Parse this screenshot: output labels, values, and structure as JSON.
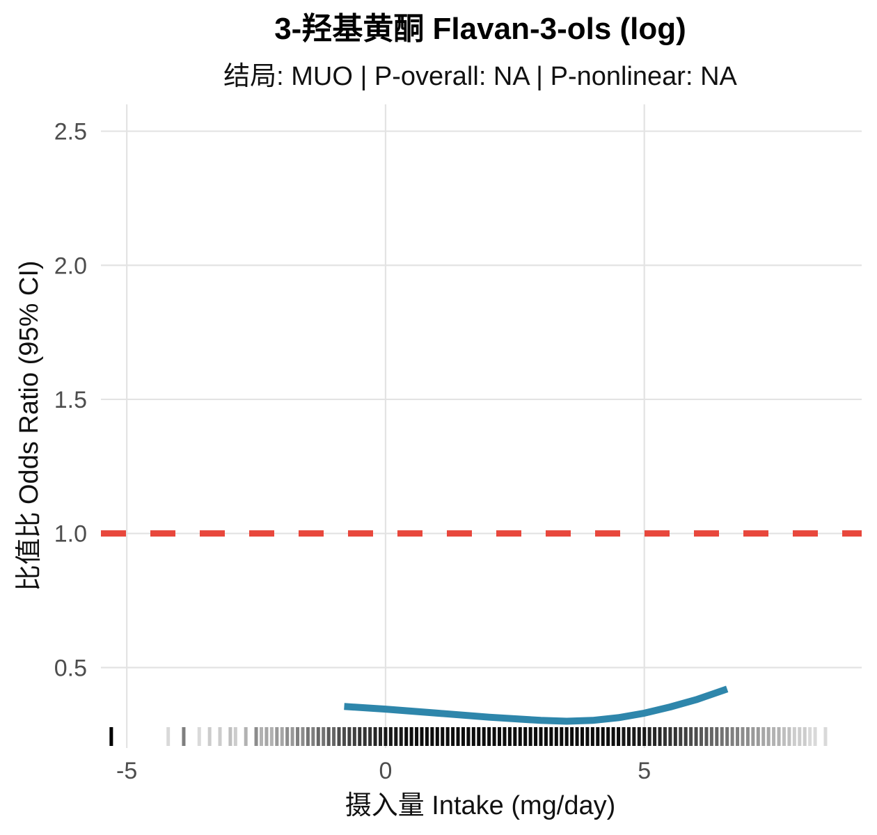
{
  "chart_data": {
    "type": "line",
    "title": "3-羟基黄酮 Flavan-3-ols (log)",
    "subtitle": "结局: MUO | P-overall: NA | P-nonlinear: NA",
    "xlabel": "摄入量 Intake (mg/day)",
    "ylabel": "比值比 Odds Ratio (95% CI)",
    "xlim": [
      -5.5,
      9.2
    ],
    "ylim": [
      0.2,
      2.6
    ],
    "xticks": [
      -5,
      0,
      5
    ],
    "xtick_labels": [
      "-5",
      "0",
      "5"
    ],
    "yticks": [
      0.5,
      1.0,
      1.5,
      2.0,
      2.5
    ],
    "ytick_labels": [
      "0.5",
      "1.0",
      "1.5",
      "2.0",
      "2.5"
    ],
    "reference_line": {
      "y": 1.0,
      "style": "dashed",
      "color": "#e8473c"
    },
    "series": [
      {
        "color": "#2e86ab",
        "x": [
          -0.8,
          0,
          1,
          2,
          3,
          3.5,
          4,
          4.5,
          5,
          5.5,
          6,
          6.6
        ],
        "y": [
          0.355,
          0.345,
          0.33,
          0.315,
          0.303,
          0.3,
          0.303,
          0.313,
          0.33,
          0.353,
          0.38,
          0.42
        ]
      }
    ],
    "rug": {
      "color": "#000000",
      "x": [
        -5.3,
        -4.2,
        -3.9,
        -3.6,
        -3.4,
        -3.2,
        -3.0,
        -2.9,
        -2.7,
        -2.5,
        -2.4,
        -2.3,
        -2.2,
        -2.1,
        -2.0,
        -1.9,
        -1.8,
        -1.7,
        -1.6,
        -1.5,
        -1.4,
        -1.3,
        -1.2,
        -1.1,
        -1.0,
        -0.9,
        -0.8,
        -0.7,
        -0.6,
        -0.5,
        -0.4,
        -0.3,
        -0.2,
        -0.1,
        0.0,
        0.1,
        0.2,
        0.3,
        0.4,
        0.5,
        0.6,
        0.7,
        0.8,
        0.9,
        1.0,
        1.1,
        1.2,
        1.3,
        1.4,
        1.5,
        1.6,
        1.7,
        1.8,
        1.9,
        2.0,
        2.1,
        2.2,
        2.3,
        2.4,
        2.5,
        2.6,
        2.7,
        2.8,
        2.9,
        3.0,
        3.1,
        3.2,
        3.3,
        3.4,
        3.5,
        3.6,
        3.7,
        3.8,
        3.9,
        4.0,
        4.1,
        4.2,
        4.3,
        4.4,
        4.5,
        4.6,
        4.7,
        4.8,
        4.9,
        5.0,
        5.1,
        5.2,
        5.3,
        5.4,
        5.5,
        5.6,
        5.7,
        5.8,
        5.9,
        6.0,
        6.1,
        6.2,
        6.3,
        6.4,
        6.5,
        6.6,
        6.7,
        6.8,
        6.9,
        7.0,
        7.1,
        7.2,
        7.3,
        7.4,
        7.5,
        7.6,
        7.7,
        7.8,
        7.9,
        8.0,
        8.1,
        8.2,
        8.3,
        8.5
      ],
      "opacity": [
        1.0,
        0.15,
        0.5,
        0.15,
        0.2,
        0.2,
        0.25,
        0.2,
        0.3,
        0.45,
        0.3,
        0.35,
        0.3,
        0.4,
        0.35,
        0.45,
        0.4,
        0.5,
        0.45,
        0.55,
        0.5,
        0.6,
        0.55,
        0.65,
        0.6,
        0.7,
        0.7,
        0.75,
        0.75,
        0.8,
        0.8,
        0.8,
        0.85,
        0.85,
        0.9,
        0.9,
        0.9,
        0.9,
        0.95,
        0.95,
        0.95,
        0.95,
        0.95,
        0.95,
        0.95,
        0.95,
        0.95,
        0.95,
        0.95,
        0.95,
        0.95,
        0.95,
        0.95,
        0.95,
        0.95,
        0.95,
        0.95,
        0.95,
        0.95,
        0.95,
        0.95,
        0.95,
        0.95,
        0.95,
        0.95,
        0.95,
        0.95,
        0.95,
        0.95,
        0.95,
        0.95,
        0.95,
        0.95,
        0.95,
        0.95,
        0.95,
        0.95,
        0.95,
        0.95,
        0.95,
        0.9,
        0.9,
        0.9,
        0.9,
        0.9,
        0.85,
        0.85,
        0.85,
        0.8,
        0.8,
        0.8,
        0.75,
        0.75,
        0.7,
        0.7,
        0.65,
        0.65,
        0.6,
        0.6,
        0.55,
        0.55,
        0.5,
        0.5,
        0.45,
        0.45,
        0.4,
        0.4,
        0.35,
        0.35,
        0.3,
        0.3,
        0.25,
        0.25,
        0.2,
        0.2,
        0.2,
        0.15,
        0.15,
        0.15
      ]
    },
    "grid": true,
    "legend": "none"
  }
}
